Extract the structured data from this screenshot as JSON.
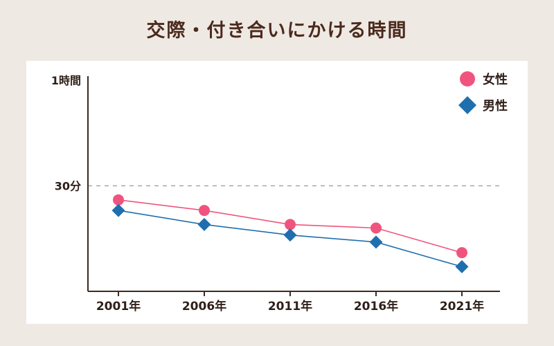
{
  "title": "交際・付き合いにかける時間",
  "colors": {
    "female": "#f0547e",
    "male": "#1f6fae",
    "axis": "#3b2a22",
    "title": "#4a2a1c",
    "background": "#efe9e4",
    "panel": "#ffffff",
    "reference_line": "#999999"
  },
  "chart_data": {
    "type": "line",
    "title": "交際・付き合いにかける時間",
    "categories": [
      "2001年",
      "2006年",
      "2011年",
      "2016年",
      "2021年"
    ],
    "series": [
      {
        "name": "女性",
        "marker": "circle",
        "color": "#f0547e",
        "values": [
          26,
          23,
          19,
          18,
          11
        ]
      },
      {
        "name": "男性",
        "marker": "diamond",
        "color": "#1f6fae",
        "values": [
          23,
          19,
          16,
          14,
          7
        ]
      }
    ],
    "y_unit": "分",
    "ylim": [
      0,
      60
    ],
    "y_ticks": [
      {
        "value": 30,
        "label": "30分"
      },
      {
        "value": 60,
        "label": "1時間"
      }
    ],
    "reference_line": {
      "value": 30,
      "style": "dashed"
    },
    "legend": {
      "placement": "top-right",
      "entries": [
        "女性",
        "男性"
      ]
    },
    "grid": false
  }
}
